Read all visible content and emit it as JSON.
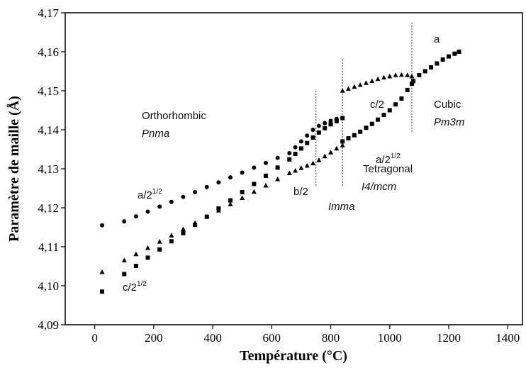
{
  "chart_data": {
    "type": "scatter",
    "xlabel": "Température (°C)",
    "ylabel": "Paramètre de maille (Å)",
    "xlim": [
      -100,
      1450
    ],
    "ylim": [
      4.09,
      4.17
    ],
    "xticks": [
      0,
      200,
      400,
      600,
      800,
      1000,
      1200,
      1400
    ],
    "yticks": [
      {
        "value": 4.09,
        "label": "4,09"
      },
      {
        "value": 4.1,
        "label": "4,10"
      },
      {
        "value": 4.11,
        "label": "4,11"
      },
      {
        "value": 4.12,
        "label": "4,12"
      },
      {
        "value": 4.13,
        "label": "4,13"
      },
      {
        "value": 4.14,
        "label": "4,14"
      },
      {
        "value": 4.15,
        "label": "4,15"
      },
      {
        "value": 4.16,
        "label": "4,16"
      },
      {
        "value": 4.17,
        "label": "4,17"
      }
    ],
    "transitions": [
      750,
      840,
      1075
    ],
    "series": [
      {
        "marker": "circle",
        "color": "#000000",
        "x": [
          25,
          100,
          140,
          180,
          220,
          260,
          300,
          340,
          380,
          420,
          460,
          500,
          540,
          580,
          620,
          660,
          680,
          700,
          720,
          740,
          760,
          780,
          800,
          820,
          840
        ],
        "values": [
          4.1155,
          4.1165,
          4.1178,
          4.119,
          4.1203,
          4.1215,
          4.1228,
          4.124,
          4.1253,
          4.1265,
          4.1278,
          4.129,
          4.1303,
          4.1315,
          4.1328,
          4.134,
          4.1355,
          4.137,
          4.1385,
          4.14,
          4.141,
          4.1417,
          4.1423,
          4.1428,
          4.143
        ]
      },
      {
        "marker": "triangle",
        "color": "#000000",
        "x": [
          25,
          100,
          140,
          180,
          220,
          260,
          300,
          340,
          380,
          420,
          460,
          500,
          540,
          580,
          620,
          660,
          680,
          700,
          720,
          740,
          760,
          780,
          800,
          820,
          840
        ],
        "values": [
          4.1035,
          4.1065,
          4.1081,
          4.1097,
          4.1113,
          4.1129,
          4.1145,
          4.1161,
          4.1177,
          4.1193,
          4.1209,
          4.1225,
          4.1241,
          4.1257,
          4.1273,
          4.1289,
          4.1295,
          4.1302,
          4.1308,
          4.1314,
          4.1322,
          4.1332,
          4.1342,
          4.1352,
          4.136
        ]
      },
      {
        "marker": "square",
        "color": "#000000",
        "x": [
          25,
          100,
          140,
          180,
          220,
          260,
          300,
          340,
          380,
          420,
          460,
          500,
          540,
          580,
          620,
          660,
          680,
          700,
          720,
          740,
          760,
          780,
          800,
          820,
          840
        ],
        "values": [
          4.0985,
          4.103,
          4.1051,
          4.1072,
          4.1093,
          4.1114,
          4.1135,
          4.1156,
          4.1177,
          4.1198,
          4.1219,
          4.124,
          4.1261,
          4.1282,
          4.1303,
          4.1324,
          4.1338,
          4.1352,
          4.1366,
          4.138,
          4.1393,
          4.1404,
          4.1414,
          4.1422,
          4.143
        ]
      },
      {
        "marker": "triangle",
        "color": "#000000",
        "x": [
          840,
          860,
          880,
          900,
          920,
          940,
          960,
          980,
          1000,
          1020,
          1040,
          1060,
          1075
        ],
        "values": [
          4.15,
          4.1505,
          4.151,
          4.1515,
          4.152,
          4.1525,
          4.153,
          4.1534,
          4.1537,
          4.154,
          4.1541,
          4.154,
          4.1537
        ]
      },
      {
        "marker": "square",
        "color": "#000000",
        "x": [
          840,
          860,
          880,
          900,
          920,
          940,
          960,
          980,
          1000,
          1020,
          1040,
          1060,
          1075,
          1080,
          1100,
          1120,
          1140,
          1160,
          1180,
          1200,
          1220,
          1235
        ],
        "values": [
          4.137,
          4.1378,
          4.1386,
          4.1395,
          4.1405,
          4.1415,
          4.1426,
          4.1438,
          4.145,
          4.1465,
          4.148,
          4.1502,
          4.1518,
          4.1525,
          4.154,
          4.155,
          4.156,
          4.157,
          4.158,
          4.1588,
          4.1595,
          4.16
        ]
      }
    ],
    "annotations": {
      "orthorhombic": "Orthorhombic",
      "pnma": "Pnma",
      "tetragonal": "Tetragonal",
      "i4mcm": "I4/mcm",
      "cubic": "Cubic",
      "pm3m": "Pm3m",
      "imma": "Imma",
      "a_ortho": {
        "text": "a/2",
        "sup": "1/2"
      },
      "b_ortho": "b/2",
      "c_ortho": {
        "text": "c/2",
        "sup": "1/2"
      },
      "a_tetra": {
        "text": "a/2",
        "sup": "1/2"
      },
      "c_tetra": "c/2",
      "a_cubic": "a"
    }
  }
}
